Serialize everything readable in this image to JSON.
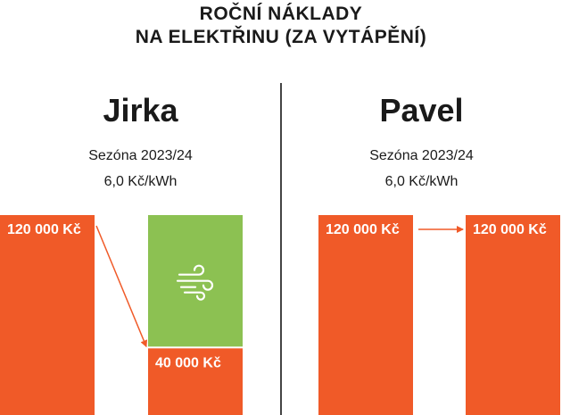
{
  "header": {
    "line1": "ROČNÍ NÁKLADY",
    "line2": "NA ELEKTŘINU (ZA VYTÁPĚNÍ)"
  },
  "colors": {
    "bar": "#f05a28",
    "heat_pump": "#8cc152",
    "text": "#1a1a1a",
    "divider": "#444444"
  },
  "panels": [
    {
      "name": "Jirka",
      "season": "Sezóna 2023/24",
      "price": "6,0 Kč/kWh"
    },
    {
      "name": "Pavel",
      "season": "Sezóna 2023/24",
      "price": "6,0 Kč/kWh"
    }
  ],
  "chart_data": {
    "type": "bar",
    "unit": "Kč",
    "panels": [
      {
        "name": "Jirka",
        "bars": [
          {
            "label": "120 000 Kč",
            "value": 120000
          },
          {
            "label": "40 000 Kč",
            "value": 40000,
            "saved_portion_value": 80000,
            "saved_portion_icon": "wind-icon"
          }
        ],
        "arrow": "from first bar to second bar"
      },
      {
        "name": "Pavel",
        "bars": [
          {
            "label": "120 000 Kč",
            "value": 120000
          },
          {
            "label": "120 000 Kč",
            "value": 120000
          }
        ],
        "arrow": "from first bar to second bar"
      }
    ],
    "ylim": [
      0,
      120000
    ]
  }
}
